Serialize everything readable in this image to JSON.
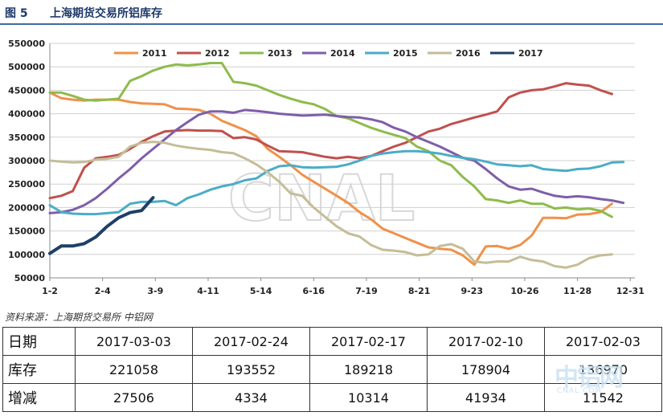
{
  "header": {
    "fig_label": "图 5",
    "title": "上海期货交易所铝库存"
  },
  "chart_data": {
    "type": "line",
    "title": "",
    "xlabel": "",
    "ylabel": "",
    "ylim": [
      50000,
      550000
    ],
    "yticks": [
      50000,
      100000,
      150000,
      200000,
      250000,
      300000,
      350000,
      400000,
      450000,
      500000,
      550000
    ],
    "xlim": [
      1,
      52
    ],
    "x_tick_labels": [
      "1-2",
      "2-4",
      "3-9",
      "4-11",
      "5-14",
      "6-16",
      "7-19",
      "8-21",
      "9-23",
      "10-26",
      "11-28",
      "12-31"
    ],
    "x_tick_positions": [
      1,
      5.6,
      10.2,
      14.8,
      19.4,
      24,
      28.6,
      33.2,
      37.8,
      42.4,
      47,
      51.6
    ],
    "legend_position": "top",
    "grid": "horizontal",
    "watermark_center": "CNAL",
    "series": [
      {
        "name": "2011",
        "color": "#f0914a",
        "x": [
          1,
          2,
          3,
          4,
          5,
          6,
          7,
          8,
          9,
          10,
          11,
          12,
          13,
          14,
          15,
          16,
          17,
          18,
          19,
          20,
          21,
          22,
          23,
          24,
          25,
          26,
          27,
          28,
          29,
          30,
          31,
          32,
          33,
          34,
          35,
          36,
          37,
          38,
          39,
          40,
          41,
          42,
          43,
          44,
          45,
          46,
          47,
          48,
          49,
          50
        ],
        "values": [
          445000,
          433000,
          430000,
          428000,
          430000,
          430000,
          430000,
          425000,
          422000,
          421000,
          420000,
          411000,
          410000,
          408000,
          400000,
          385000,
          375000,
          365000,
          352000,
          325000,
          308000,
          290000,
          270000,
          255000,
          240000,
          225000,
          210000,
          190000,
          175000,
          155000,
          145000,
          135000,
          125000,
          115000,
          112000,
          110000,
          98000,
          78000,
          117000,
          118000,
          112000,
          120000,
          140000,
          178000,
          178000,
          177000,
          185000,
          186000,
          190000,
          208000
        ]
      },
      {
        "name": "2012",
        "color": "#c0504d",
        "x": [
          1,
          2,
          3,
          4,
          5,
          6,
          7,
          8,
          9,
          10,
          11,
          12,
          13,
          14,
          15,
          16,
          17,
          18,
          19,
          20,
          21,
          22,
          23,
          24,
          25,
          26,
          27,
          28,
          29,
          30,
          31,
          32,
          33,
          34,
          35,
          36,
          37,
          38,
          39,
          40,
          41,
          42,
          43,
          44,
          45,
          46,
          47,
          48,
          49,
          50
        ],
        "values": [
          220000,
          225000,
          235000,
          285000,
          305000,
          308000,
          312000,
          325000,
          340000,
          352000,
          362000,
          364000,
          365000,
          364000,
          364000,
          363000,
          348000,
          350000,
          345000,
          332000,
          320000,
          319000,
          318000,
          313000,
          308000,
          305000,
          308000,
          305000,
          310000,
          320000,
          330000,
          338000,
          350000,
          362000,
          368000,
          378000,
          385000,
          392000,
          398000,
          405000,
          435000,
          445000,
          450000,
          452000,
          458000,
          465000,
          462000,
          460000,
          450000,
          442000
        ]
      },
      {
        "name": "2013",
        "color": "#8ebb4c",
        "x": [
          1,
          2,
          3,
          4,
          5,
          6,
          7,
          8,
          9,
          10,
          11,
          12,
          13,
          14,
          15,
          16,
          17,
          18,
          19,
          20,
          21,
          22,
          23,
          24,
          25,
          26,
          27,
          28,
          29,
          30,
          31,
          32,
          33,
          34,
          35,
          36,
          37,
          38,
          39,
          40,
          41,
          42,
          43,
          44,
          45,
          46,
          47,
          48,
          49,
          50
        ],
        "values": [
          445000,
          445000,
          438000,
          430000,
          428000,
          430000,
          432000,
          470000,
          480000,
          492000,
          500000,
          505000,
          503000,
          505000,
          508000,
          508000,
          468000,
          465000,
          460000,
          450000,
          440000,
          432000,
          425000,
          420000,
          410000,
          395000,
          390000,
          380000,
          370000,
          362000,
          355000,
          348000,
          330000,
          320000,
          300000,
          290000,
          265000,
          245000,
          218000,
          215000,
          210000,
          215000,
          208000,
          208000,
          198000,
          200000,
          196000,
          198000,
          193000,
          180000
        ]
      },
      {
        "name": "2014",
        "color": "#7f5ea8",
        "x": [
          1,
          2,
          3,
          4,
          5,
          6,
          7,
          8,
          9,
          10,
          11,
          12,
          13,
          14,
          15,
          16,
          17,
          18,
          19,
          20,
          21,
          22,
          23,
          24,
          25,
          26,
          27,
          28,
          29,
          30,
          31,
          32,
          33,
          34,
          35,
          36,
          37,
          38,
          39,
          40,
          41,
          42,
          43,
          44,
          45,
          46,
          47,
          48,
          49,
          50,
          51
        ],
        "values": [
          188000,
          190000,
          195000,
          205000,
          220000,
          240000,
          262000,
          282000,
          305000,
          325000,
          345000,
          365000,
          382000,
          398000,
          405000,
          405000,
          402000,
          408000,
          406000,
          403000,
          400000,
          398000,
          396000,
          397000,
          398000,
          395000,
          393000,
          392000,
          388000,
          382000,
          370000,
          362000,
          350000,
          340000,
          330000,
          318000,
          306000,
          300000,
          282000,
          262000,
          245000,
          238000,
          240000,
          232000,
          225000,
          222000,
          224000,
          222000,
          218000,
          215000,
          210000
        ]
      },
      {
        "name": "2015",
        "color": "#4bacc6",
        "x": [
          1,
          2,
          3,
          4,
          5,
          6,
          7,
          8,
          9,
          10,
          11,
          12,
          13,
          14,
          15,
          16,
          17,
          18,
          19,
          20,
          21,
          22,
          23,
          24,
          25,
          26,
          27,
          28,
          29,
          30,
          31,
          32,
          33,
          34,
          35,
          36,
          37,
          38,
          39,
          40,
          41,
          42,
          43,
          44,
          45,
          46,
          47,
          48,
          49,
          50,
          51
        ],
        "values": [
          205000,
          190000,
          187000,
          186000,
          186000,
          188000,
          190000,
          208000,
          212000,
          212000,
          214000,
          205000,
          220000,
          228000,
          238000,
          245000,
          250000,
          258000,
          262000,
          278000,
          288000,
          290000,
          286000,
          285000,
          286000,
          287000,
          292000,
          300000,
          310000,
          315000,
          318000,
          320000,
          320000,
          318000,
          315000,
          310000,
          306000,
          303000,
          298000,
          292000,
          290000,
          288000,
          290000,
          282000,
          280000,
          278000,
          282000,
          283000,
          288000,
          296000,
          297000
        ]
      },
      {
        "name": "2016",
        "color": "#c4bd97",
        "x": [
          1,
          2,
          3,
          4,
          5,
          6,
          7,
          8,
          9,
          10,
          11,
          12,
          13,
          14,
          15,
          16,
          17,
          18,
          19,
          20,
          21,
          22,
          23,
          24,
          25,
          26,
          27,
          28,
          29,
          30,
          31,
          32,
          33,
          34,
          35,
          36,
          37,
          38,
          39,
          40,
          41,
          42,
          43,
          44,
          45,
          46,
          47,
          48,
          49,
          50
        ],
        "values": [
          300000,
          298000,
          296000,
          297000,
          302000,
          304000,
          308000,
          330000,
          338000,
          340000,
          338000,
          332000,
          328000,
          325000,
          323000,
          318000,
          316000,
          305000,
          292000,
          275000,
          255000,
          230000,
          225000,
          200000,
          180000,
          160000,
          145000,
          138000,
          120000,
          110000,
          108000,
          105000,
          98000,
          100000,
          118000,
          122000,
          112000,
          85000,
          82000,
          85000,
          85000,
          95000,
          88000,
          85000,
          75000,
          72000,
          78000,
          92000,
          98000,
          100000
        ]
      },
      {
        "name": "2017",
        "color": "#1f3f67",
        "x": [
          1,
          2,
          3,
          4,
          5,
          6,
          7,
          8,
          9,
          10
        ],
        "values": [
          102000,
          118000,
          118000,
          123000,
          137000,
          160000,
          178000,
          189218,
          193552,
          221058
        ]
      }
    ]
  },
  "footer": {
    "source": "资料来源：上海期货交易所    中铝网"
  },
  "table": {
    "row_labels": [
      "日期",
      "库存",
      "增减"
    ],
    "rows": [
      [
        "2017-03-03",
        "2017-02-24",
        "2017-02-17",
        "2017-02-10",
        "2017-02-03"
      ],
      [
        "221058",
        "193552",
        "189218",
        "178904",
        "136970"
      ],
      [
        "27506",
        "4334",
        "10314",
        "41934",
        "11542"
      ]
    ]
  },
  "watermark": {
    "text": "中铝网",
    "sub": "CNAL.COM"
  }
}
